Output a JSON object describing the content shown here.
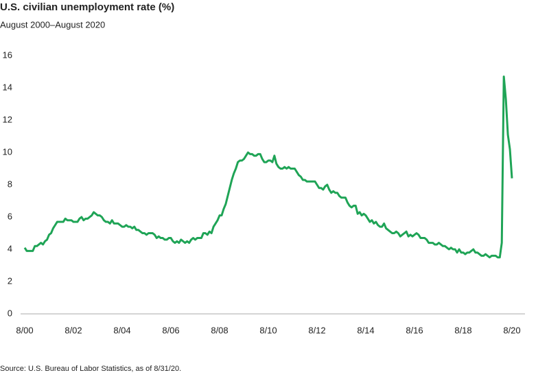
{
  "chart_data": {
    "type": "line",
    "title": "U.S. civilian unemployment rate (%)",
    "subtitle": "August 2000–August 2020",
    "source": "Source: U.S. Bureau of Labor Statistics, as of 8/31/20.",
    "color": "#1fa456",
    "grid": false,
    "ylim": [
      0,
      16
    ],
    "yticks": [
      0,
      2,
      4,
      6,
      8,
      10,
      12,
      14,
      16
    ],
    "categories": [
      "8/00",
      null,
      null,
      null,
      null,
      null,
      null,
      null,
      null,
      null,
      null,
      null,
      null,
      null,
      null,
      null,
      null,
      null,
      null,
      null,
      null,
      null,
      null,
      null,
      "8/02",
      null,
      null,
      null,
      null,
      null,
      null,
      null,
      null,
      null,
      null,
      null,
      null,
      null,
      null,
      null,
      null,
      null,
      null,
      null,
      null,
      null,
      null,
      null,
      "8/04",
      null,
      null,
      null,
      null,
      null,
      null,
      null,
      null,
      null,
      null,
      null,
      null,
      null,
      null,
      null,
      null,
      null,
      null,
      null,
      null,
      null,
      null,
      null,
      "8/06",
      null,
      null,
      null,
      null,
      null,
      null,
      null,
      null,
      null,
      null,
      null,
      null,
      null,
      null,
      null,
      null,
      null,
      null,
      null,
      null,
      null,
      null,
      null,
      "8/08",
      null,
      null,
      null,
      null,
      null,
      null,
      null,
      null,
      null,
      null,
      null,
      null,
      null,
      null,
      null,
      null,
      null,
      null,
      null,
      null,
      null,
      null,
      null,
      "8/10",
      null,
      null,
      null,
      null,
      null,
      null,
      null,
      null,
      null,
      null,
      null,
      null,
      null,
      null,
      null,
      null,
      null,
      null,
      null,
      null,
      null,
      null,
      null,
      "8/12",
      null,
      null,
      null,
      null,
      null,
      null,
      null,
      null,
      null,
      null,
      null,
      null,
      null,
      null,
      null,
      null,
      null,
      null,
      null,
      null,
      null,
      null,
      null,
      "8/14",
      null,
      null,
      null,
      null,
      null,
      null,
      null,
      null,
      null,
      null,
      null,
      null,
      null,
      null,
      null,
      null,
      null,
      null,
      null,
      null,
      null,
      null,
      null,
      "8/16",
      null,
      null,
      null,
      null,
      null,
      null,
      null,
      null,
      null,
      null,
      null,
      null,
      null,
      null,
      null,
      null,
      null,
      null,
      null,
      null,
      null,
      null,
      null,
      "8/18",
      null,
      null,
      null,
      null,
      null,
      null,
      null,
      null,
      null,
      null,
      null,
      null,
      null,
      null,
      null,
      null,
      null,
      null,
      null,
      null,
      null,
      null,
      null,
      "8/20"
    ],
    "values": [
      4.1,
      3.9,
      3.9,
      3.9,
      3.9,
      4.2,
      4.2,
      4.3,
      4.4,
      4.3,
      4.5,
      4.6,
      4.9,
      5.0,
      5.3,
      5.5,
      5.7,
      5.7,
      5.7,
      5.7,
      5.9,
      5.8,
      5.8,
      5.8,
      5.7,
      5.7,
      5.7,
      5.9,
      6.0,
      5.8,
      5.9,
      5.9,
      6.0,
      6.1,
      6.3,
      6.2,
      6.1,
      6.1,
      6.0,
      5.8,
      5.7,
      5.7,
      5.6,
      5.8,
      5.6,
      5.6,
      5.6,
      5.5,
      5.4,
      5.4,
      5.5,
      5.4,
      5.4,
      5.3,
      5.4,
      5.2,
      5.2,
      5.1,
      5.0,
      5.0,
      4.9,
      5.0,
      5.0,
      5.0,
      4.9,
      4.7,
      4.8,
      4.7,
      4.7,
      4.6,
      4.6,
      4.7,
      4.7,
      4.5,
      4.4,
      4.5,
      4.4,
      4.6,
      4.5,
      4.4,
      4.5,
      4.4,
      4.6,
      4.7,
      4.6,
      4.7,
      4.7,
      4.7,
      5.0,
      5.0,
      4.9,
      5.1,
      5.0,
      5.4,
      5.6,
      5.8,
      6.1,
      6.1,
      6.5,
      6.8,
      7.3,
      7.8,
      8.3,
      8.7,
      9.0,
      9.4,
      9.5,
      9.5,
      9.6,
      9.8,
      10.0,
      9.9,
      9.9,
      9.8,
      9.8,
      9.9,
      9.9,
      9.6,
      9.4,
      9.4,
      9.5,
      9.5,
      9.4,
      9.8,
      9.3,
      9.1,
      9.0,
      9.0,
      9.1,
      9.0,
      9.1,
      9.0,
      9.0,
      9.0,
      8.8,
      8.6,
      8.5,
      8.3,
      8.3,
      8.2,
      8.2,
      8.2,
      8.2,
      8.2,
      8.0,
      7.8,
      7.8,
      7.7,
      7.9,
      8.0,
      7.7,
      7.5,
      7.6,
      7.5,
      7.5,
      7.3,
      7.2,
      7.2,
      7.2,
      6.9,
      6.7,
      6.6,
      6.7,
      6.7,
      6.2,
      6.3,
      6.1,
      6.2,
      6.1,
      5.9,
      5.7,
      5.8,
      5.6,
      5.7,
      5.5,
      5.4,
      5.4,
      5.6,
      5.3,
      5.2,
      5.1,
      5.0,
      5.0,
      5.1,
      5.0,
      4.8,
      4.9,
      5.0,
      5.1,
      4.8,
      4.9,
      4.8,
      4.9,
      5.0,
      4.9,
      4.7,
      4.7,
      4.7,
      4.6,
      4.4,
      4.4,
      4.4,
      4.3,
      4.3,
      4.4,
      4.3,
      4.2,
      4.2,
      4.1,
      4.0,
      4.1,
      4.0,
      4.0,
      3.8,
      4.0,
      3.8,
      3.8,
      3.7,
      3.8,
      3.8,
      3.9,
      4.0,
      3.8,
      3.8,
      3.7,
      3.6,
      3.6,
      3.7,
      3.6,
      3.5,
      3.6,
      3.6,
      3.6,
      3.5,
      3.5,
      4.4,
      14.7,
      13.3,
      11.1,
      10.2,
      8.4
    ]
  }
}
